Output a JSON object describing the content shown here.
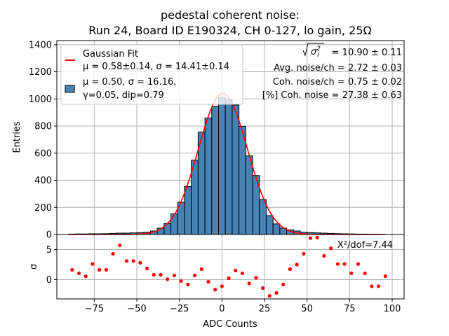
{
  "chart_data": [
    {
      "type": "bar",
      "panel": "histogram",
      "title_lines": [
        "pedestal coherent noise:",
        "Run 24, Board ID E190324, CH 0-127, lo gain, 25Ω"
      ],
      "xlabel": "",
      "ylabel": "Entries",
      "xlim": [
        -97,
        107
      ],
      "ylim": [
        0,
        1430
      ],
      "yticks": [
        0,
        200,
        400,
        600,
        800,
        1000,
        1200,
        1400
      ],
      "xticks": [
        -75,
        -50,
        -25,
        0,
        25,
        50,
        75,
        100
      ],
      "grid": true,
      "bin_width": 4,
      "bin_centers": [
        -88,
        -84,
        -80,
        -76,
        -72,
        -68,
        -64,
        -60,
        -56,
        -52,
        -48,
        -44,
        -40,
        -36,
        -32,
        -28,
        -24,
        -20,
        -16,
        -12,
        -8,
        -4,
        0,
        4,
        8,
        12,
        16,
        20,
        24,
        28,
        32,
        36,
        40,
        44,
        48,
        52,
        56,
        60,
        64,
        68,
        72,
        76,
        80,
        84,
        88,
        92
      ],
      "values": [
        3,
        4,
        4,
        5,
        5,
        6,
        8,
        10,
        10,
        12,
        14,
        17,
        26,
        47,
        81,
        153,
        238,
        354,
        548,
        755,
        859,
        945,
        1011,
        997,
        955,
        798,
        580,
        435,
        258,
        139,
        78,
        47,
        35,
        26,
        17,
        14,
        12,
        10,
        8,
        6,
        5,
        4,
        3,
        3,
        2,
        2
      ],
      "bar_color": "#4682b4",
      "fit": {
        "type": "gaussian",
        "mu": 0.58,
        "sigma": 14.41,
        "amplitude": 1040,
        "x_range": [
          -90,
          96
        ],
        "color": "#ff0000"
      },
      "legend": {
        "placement": "top-left",
        "entries": [
          {
            "kind": "line",
            "label_lines": [
              "Gaussian Fit",
              "μ = 0.58±0.14, σ = 14.41±0.14"
            ]
          },
          {
            "kind": "patch",
            "label_lines": [
              "μ = 0.50, σ = 16.16,",
              "γ=0.05, dip=0.79"
            ]
          }
        ]
      },
      "annotations": {
        "placement": "top-right",
        "lines": [
          {
            "prefix": "√σᵢ²",
            "text": " = 10.90 ± 0.11"
          },
          {
            "prefix": "",
            "text": "Avg. noise/ch = 2.72 ± 0.03"
          },
          {
            "prefix": "",
            "text": "Coh. noise/ch = 0.75 ± 0.02"
          },
          {
            "prefix": "",
            "text": "[%] Coh. noise = 27.38  ± 0.63"
          }
        ]
      }
    },
    {
      "type": "scatter",
      "panel": "residuals",
      "xlabel": "ADC Counts",
      "ylabel": "σ",
      "xlim": [
        -97,
        107
      ],
      "ylim": [
        -3.2,
        7.5
      ],
      "yticks": [
        0,
        5
      ],
      "xticks": [
        -75,
        -50,
        -25,
        0,
        25,
        50,
        75,
        100
      ],
      "xtick_labels": [
        "−75",
        "−50",
        "−25",
        "0",
        "25",
        "50",
        "75",
        "100"
      ],
      "grid": true,
      "marker_color": "#ff0000",
      "x": [
        -88,
        -84,
        -80,
        -76,
        -72,
        -68,
        -64,
        -60,
        -56,
        -52,
        -48,
        -44,
        -40,
        -36,
        -32,
        -28,
        -24,
        -20,
        -16,
        -12,
        -8,
        -4,
        0,
        4,
        8,
        12,
        16,
        20,
        24,
        28,
        32,
        36,
        40,
        44,
        48,
        52,
        56,
        60,
        64,
        68,
        72,
        76,
        80,
        84,
        88,
        92,
        96
      ],
      "y": [
        1.63,
        1.05,
        0.55,
        2.6,
        1.63,
        1.63,
        4.3,
        5.7,
        3.1,
        3.1,
        2.8,
        1.86,
        0.81,
        0.81,
        0.07,
        0.7,
        -0.23,
        -0.81,
        0.7,
        1.74,
        -0.35,
        -1.66,
        -1.1,
        0.23,
        1.51,
        1.05,
        -0.62,
        0.31,
        -1.4,
        -2.7,
        -2.2,
        -0.81,
        1.74,
        2.5,
        4.3,
        6.9,
        7.0,
        3.95,
        5.2,
        2.6,
        2.6,
        1.05,
        2.6,
        1.05,
        -1.1,
        -1.1,
        0.58
      ],
      "annotation": "X²/dof=7.44"
    }
  ]
}
